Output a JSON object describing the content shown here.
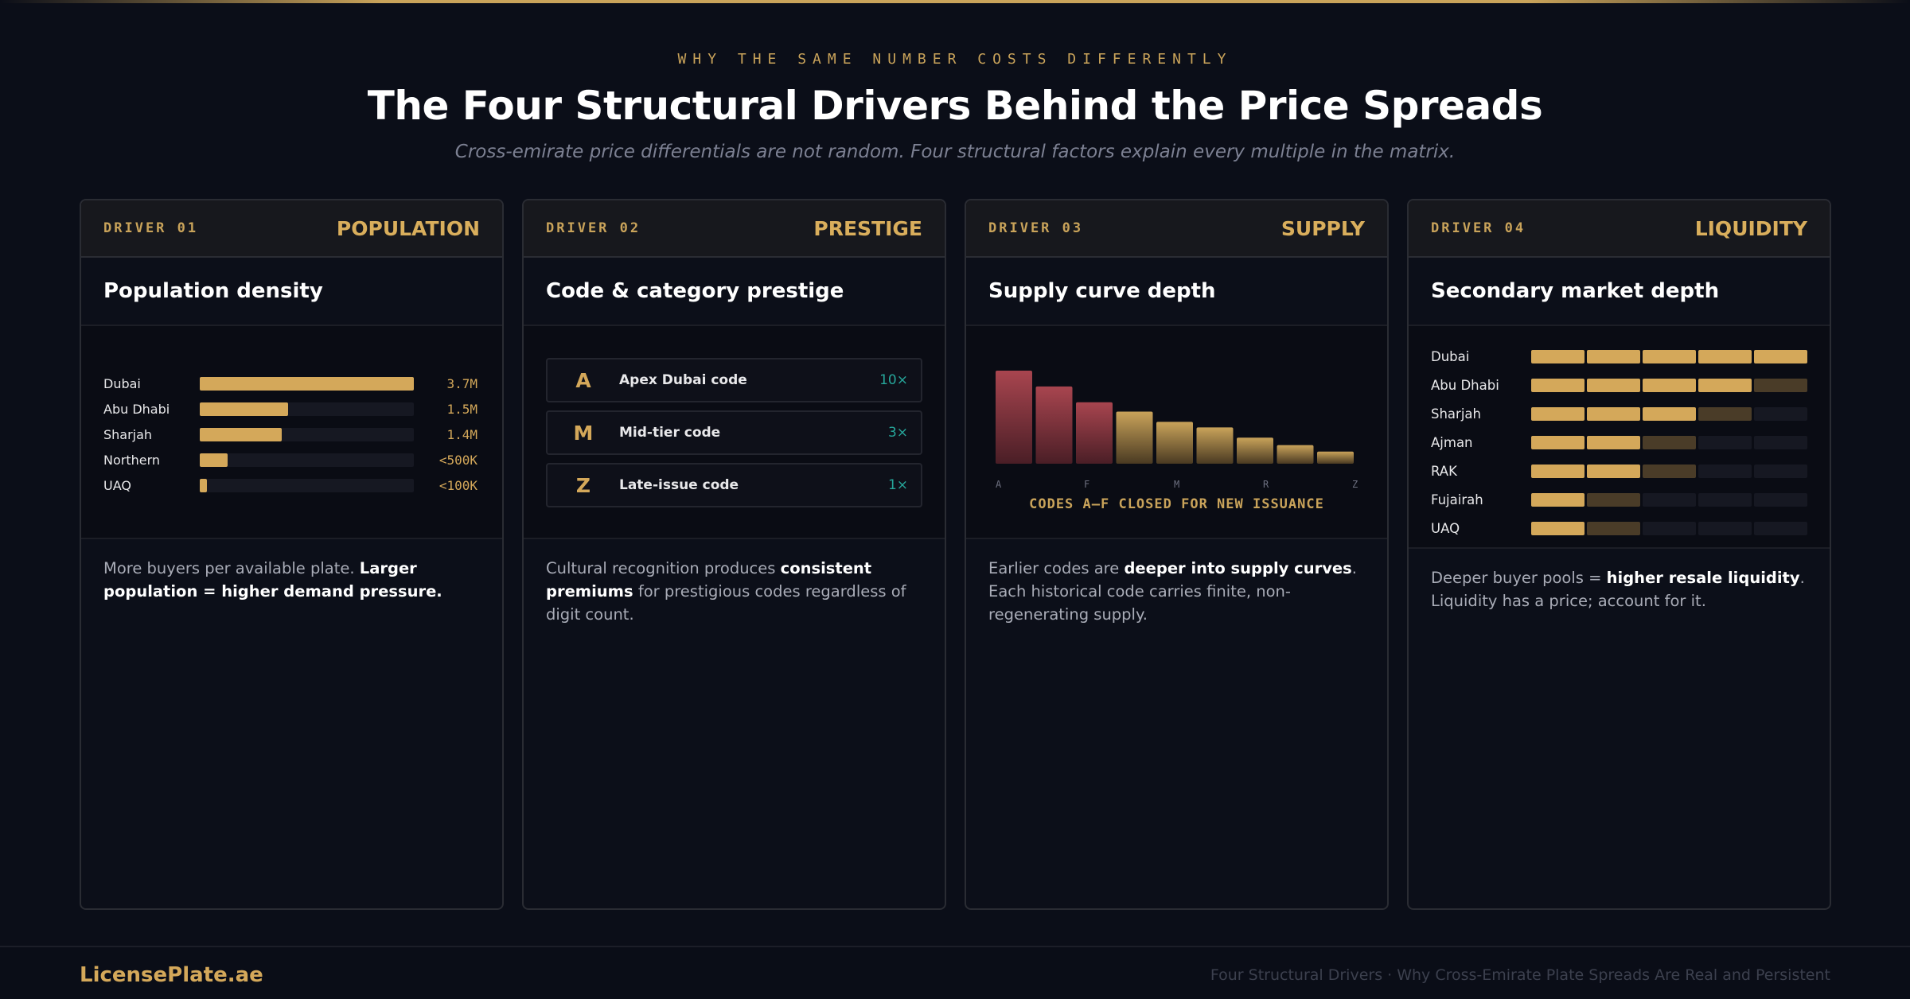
{
  "header": {
    "eyebrow": "WHY THE SAME NUMBER COSTS DIFFERENTLY",
    "title": "The Four Structural Drivers Behind the Price Spreads",
    "subtitle": "Cross-emirate price differentials are not random. Four structural factors explain every multiple in the matrix."
  },
  "cards": [
    {
      "driver": "DRIVER 01",
      "tag": "POPULATION",
      "title": "Population density",
      "desc_pre": "More buyers per available plate. ",
      "desc_bold": "Larger population = higher demand pressure.",
      "desc_post": ""
    },
    {
      "driver": "DRIVER 02",
      "tag": "PRESTIGE",
      "title": "Code & category prestige",
      "desc_pre": "Cultural recognition produces ",
      "desc_bold": "consistent premiums",
      "desc_post": " for prestigious codes regardless of digit count."
    },
    {
      "driver": "DRIVER 03",
      "tag": "SUPPLY",
      "title": "Supply curve depth",
      "desc_pre": "Earlier codes are ",
      "desc_bold": "deeper into supply curves",
      "desc_post": ". Each historical code carries finite, non-regenerating supply."
    },
    {
      "driver": "DRIVER 04",
      "tag": "LIQUIDITY",
      "title": "Secondary market depth",
      "desc_pre": "Deeper buyer pools = ",
      "desc_bold": "higher resale liquidity",
      "desc_post": ". Liquidity has a price; account for it."
    }
  ],
  "population": {
    "rows": [
      {
        "label": "Dubai",
        "value": "3.7M",
        "fill": 1.0
      },
      {
        "label": "Abu Dhabi",
        "value": "1.5M",
        "fill": 0.41
      },
      {
        "label": "Sharjah",
        "value": "1.4M",
        "fill": 0.38
      },
      {
        "label": "Northern",
        "value": "<500K",
        "fill": 0.13
      },
      {
        "label": "UAQ",
        "value": "<100K",
        "fill": 0.03
      }
    ]
  },
  "prestige": {
    "tiers": [
      {
        "letter": "A",
        "label": "Apex Dubai code",
        "mult": "10×"
      },
      {
        "letter": "M",
        "label": "Mid-tier code",
        "mult": "3×"
      },
      {
        "letter": "Z",
        "label": "Late-issue code",
        "mult": "1×"
      }
    ]
  },
  "supply": {
    "caption": "CODES A–F CLOSED FOR NEW ISSUANCE",
    "ticks": [
      "A",
      "F",
      "M",
      "R",
      "Z"
    ],
    "bars": [
      1.0,
      0.83,
      0.66,
      0.56,
      0.45,
      0.39,
      0.28,
      0.2,
      0.13
    ],
    "closed_count": 3,
    "colors": {
      "closed_top": "#a8454f",
      "closed_bottom": "#4a1e26",
      "open_top": "#c9a35a",
      "open_bottom": "#4a3a22"
    }
  },
  "liquidity": {
    "rows": [
      {
        "label": "Dubai",
        "full": 5,
        "half": 0
      },
      {
        "label": "Abu Dhabi",
        "full": 4,
        "half": 1
      },
      {
        "label": "Sharjah",
        "full": 3,
        "half": 1
      },
      {
        "label": "Ajman",
        "full": 2,
        "half": 1
      },
      {
        "label": "RAK",
        "full": 2,
        "half": 1
      },
      {
        "label": "Fujairah",
        "full": 1,
        "half": 1
      },
      {
        "label": "UAQ",
        "full": 1,
        "half": 1
      }
    ],
    "segments": 5
  },
  "footer": {
    "brand": "LicensePlate.ae",
    "note": "Four Structural Drivers · Why Cross-Emirate Plate Spreads Are Real and Persistent"
  },
  "colors": {
    "accent": "#c9a35a",
    "teal": "#26a69a",
    "background": "#0b0e18"
  }
}
